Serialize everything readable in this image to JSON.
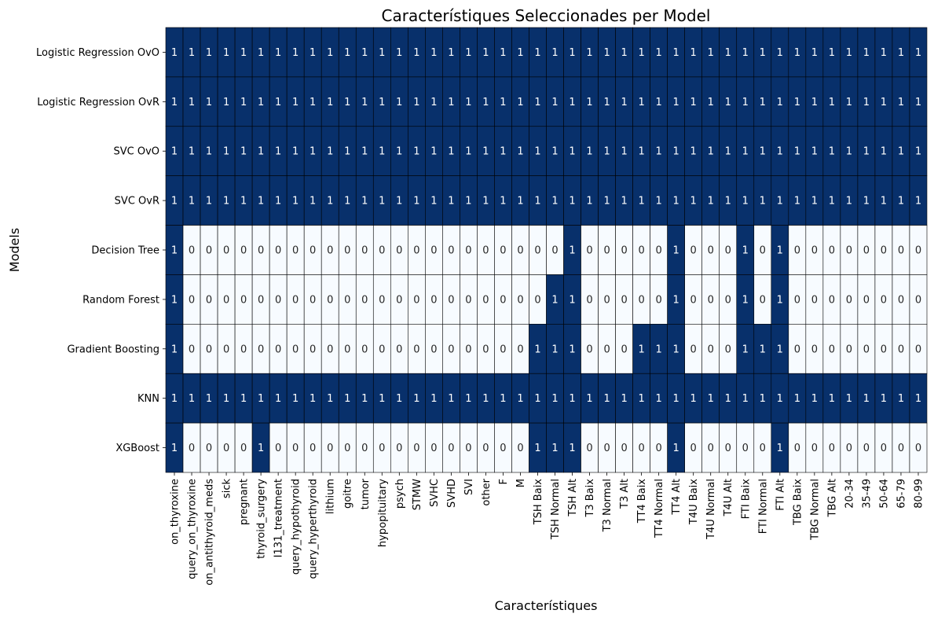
{
  "chart_data": {
    "type": "heatmap",
    "title": "Característiques Seleccionades per Model",
    "xlabel": "Característiques",
    "ylabel": "Models",
    "colorbar": false,
    "colors": {
      "low": "#f7fbff",
      "high": "#08306b",
      "text_on_high": "#ffffff",
      "text_on_low": "#262626",
      "grid": "#000000"
    },
    "x": [
      "on_thyroxine",
      "query_on_thyroxine",
      "on_antithyroid_meds",
      "sick",
      "pregnant",
      "thyroid_surgery",
      "I131_treatment",
      "query_hypothyroid",
      "query_hyperthyroid",
      "lithium",
      "goitre",
      "tumor",
      "hypopituitary",
      "psych",
      "STMW",
      "SVHC",
      "SVHD",
      "SVI",
      "other",
      "F",
      "M",
      "TSH Baix",
      "TSH Normal",
      "TSH Alt",
      "T3 Baix",
      "T3 Normal",
      "T3 Alt",
      "TT4 Baix",
      "TT4 Normal",
      "TT4 Alt",
      "T4U Baix",
      "T4U Normal",
      "T4U Alt",
      "FTI Baix",
      "FTI Normal",
      "FTI Alt",
      "TBG Baix",
      "TBG Normal",
      "TBG Alt",
      "20-34",
      "35-49",
      "50-64",
      "65-79",
      "80-99"
    ],
    "y": [
      "Logistic Regression OvO",
      "Logistic Regression OvR",
      "SVC OvO",
      "SVC OvR",
      "Decision Tree",
      "Random Forest",
      "Gradient Boosting",
      "KNN",
      "XGBoost"
    ],
    "values": [
      [
        1,
        1,
        1,
        1,
        1,
        1,
        1,
        1,
        1,
        1,
        1,
        1,
        1,
        1,
        1,
        1,
        1,
        1,
        1,
        1,
        1,
        1,
        1,
        1,
        1,
        1,
        1,
        1,
        1,
        1,
        1,
        1,
        1,
        1,
        1,
        1,
        1,
        1,
        1,
        1,
        1,
        1,
        1,
        1
      ],
      [
        1,
        1,
        1,
        1,
        1,
        1,
        1,
        1,
        1,
        1,
        1,
        1,
        1,
        1,
        1,
        1,
        1,
        1,
        1,
        1,
        1,
        1,
        1,
        1,
        1,
        1,
        1,
        1,
        1,
        1,
        1,
        1,
        1,
        1,
        1,
        1,
        1,
        1,
        1,
        1,
        1,
        1,
        1,
        1
      ],
      [
        1,
        1,
        1,
        1,
        1,
        1,
        1,
        1,
        1,
        1,
        1,
        1,
        1,
        1,
        1,
        1,
        1,
        1,
        1,
        1,
        1,
        1,
        1,
        1,
        1,
        1,
        1,
        1,
        1,
        1,
        1,
        1,
        1,
        1,
        1,
        1,
        1,
        1,
        1,
        1,
        1,
        1,
        1,
        1
      ],
      [
        1,
        1,
        1,
        1,
        1,
        1,
        1,
        1,
        1,
        1,
        1,
        1,
        1,
        1,
        1,
        1,
        1,
        1,
        1,
        1,
        1,
        1,
        1,
        1,
        1,
        1,
        1,
        1,
        1,
        1,
        1,
        1,
        1,
        1,
        1,
        1,
        1,
        1,
        1,
        1,
        1,
        1,
        1,
        1
      ],
      [
        1,
        0,
        0,
        0,
        0,
        0,
        0,
        0,
        0,
        0,
        0,
        0,
        0,
        0,
        0,
        0,
        0,
        0,
        0,
        0,
        0,
        0,
        0,
        1,
        0,
        0,
        0,
        0,
        0,
        1,
        0,
        0,
        0,
        1,
        0,
        1,
        0,
        0,
        0,
        0,
        0,
        0,
        0,
        0
      ],
      [
        1,
        0,
        0,
        0,
        0,
        0,
        0,
        0,
        0,
        0,
        0,
        0,
        0,
        0,
        0,
        0,
        0,
        0,
        0,
        0,
        0,
        0,
        1,
        1,
        0,
        0,
        0,
        0,
        0,
        1,
        0,
        0,
        0,
        1,
        0,
        1,
        0,
        0,
        0,
        0,
        0,
        0,
        0,
        0
      ],
      [
        1,
        0,
        0,
        0,
        0,
        0,
        0,
        0,
        0,
        0,
        0,
        0,
        0,
        0,
        0,
        0,
        0,
        0,
        0,
        0,
        0,
        1,
        1,
        1,
        0,
        0,
        0,
        1,
        1,
        1,
        0,
        0,
        0,
        1,
        1,
        1,
        0,
        0,
        0,
        0,
        0,
        0,
        0,
        0
      ],
      [
        1,
        1,
        1,
        1,
        1,
        1,
        1,
        1,
        1,
        1,
        1,
        1,
        1,
        1,
        1,
        1,
        1,
        1,
        1,
        1,
        1,
        1,
        1,
        1,
        1,
        1,
        1,
        1,
        1,
        1,
        1,
        1,
        1,
        1,
        1,
        1,
        1,
        1,
        1,
        1,
        1,
        1,
        1,
        1
      ],
      [
        1,
        0,
        0,
        0,
        0,
        1,
        0,
        0,
        0,
        0,
        0,
        0,
        0,
        0,
        0,
        0,
        0,
        0,
        0,
        0,
        0,
        1,
        1,
        1,
        0,
        0,
        0,
        0,
        0,
        1,
        0,
        0,
        0,
        0,
        0,
        1,
        0,
        0,
        0,
        0,
        0,
        0,
        0,
        0
      ]
    ]
  }
}
